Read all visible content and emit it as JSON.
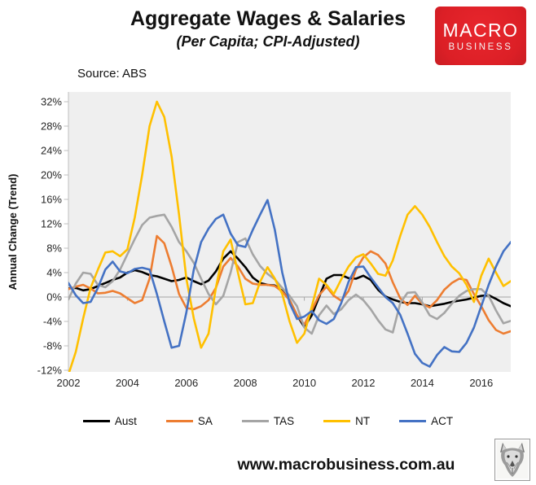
{
  "header": {
    "title": "Aggregate Wages & Salaries",
    "subtitle": "(Per Capita; CPI-Adjusted)",
    "source": "Source: ABS"
  },
  "logo": {
    "line1": "MACRO",
    "line2": "BUSINESS",
    "bg_color": "#DC1F26",
    "text_color": "#FFFFFF"
  },
  "footer": {
    "url": "www.macrobusiness.com.au",
    "emblem": "wolf-etching"
  },
  "chart_data": {
    "type": "line",
    "title": "Aggregate Wages & Salaries",
    "subtitle": "(Per Capita; CPI-Adjusted)",
    "source": "Source: ABS",
    "ylabel": "Annual Change (Trend)",
    "xlabel": "",
    "x_start": 2002.0,
    "x_step": 0.25,
    "xlim": [
      2002,
      2017
    ],
    "ylim": [
      -12.3,
      33.6
    ],
    "xticks": [
      2002,
      2004,
      2006,
      2008,
      2010,
      2012,
      2014,
      2016
    ],
    "ytick_values": [
      32,
      28,
      24,
      20,
      16,
      12,
      8,
      4,
      0,
      -4,
      -8,
      -12
    ],
    "ytick_labels": [
      "32%",
      "28%",
      "24%",
      "20%",
      "16%",
      "12%",
      "8%",
      "4%",
      "0%",
      "-4%",
      "-8%",
      "-12%"
    ],
    "grid": "zero-line-only",
    "legend_position": "bottom",
    "plot_bg": "#EFEFEF",
    "axis_color": "#BFBFBF",
    "zero_line_color": "#A6A6A6",
    "series": [
      {
        "name": "Aust",
        "color": "#000000",
        "values": [
          1.4,
          1.5,
          1.1,
          1.3,
          1.8,
          2.3,
          2.8,
          3.2,
          4.0,
          4.4,
          4.1,
          3.6,
          3.4,
          3.0,
          2.6,
          2.8,
          3.2,
          2.6,
          2.1,
          2.7,
          4.2,
          6.3,
          7.5,
          6.3,
          4.9,
          3.2,
          2.3,
          2.0,
          1.9,
          1.0,
          -0.5,
          -3.0,
          -4.9,
          -3.0,
          0.0,
          3.0,
          3.6,
          3.6,
          3.1,
          3.0,
          3.5,
          2.8,
          1.2,
          0.1,
          -0.4,
          -0.8,
          -1.0,
          -1.0,
          -1.2,
          -1.5,
          -1.3,
          -1.1,
          -0.8,
          -0.6,
          -0.4,
          -0.1,
          0.2,
          0.3,
          -0.3,
          -1.0,
          -1.5
        ]
      },
      {
        "name": "SA",
        "color": "#ED7D31",
        "values": [
          1.3,
          1.7,
          2.0,
          1.4,
          0.6,
          0.7,
          1.0,
          0.6,
          -0.2,
          -1.0,
          -0.5,
          3.0,
          10.0,
          8.8,
          5.0,
          0.5,
          -1.8,
          -2.0,
          -1.5,
          -0.5,
          1.5,
          5.0,
          6.4,
          5.0,
          3.0,
          2.2,
          2.0,
          2.0,
          1.8,
          0.9,
          -0.5,
          -3.0,
          -4.5,
          -2.2,
          0.3,
          1.7,
          0.2,
          -0.6,
          1.0,
          4.5,
          6.5,
          7.5,
          6.9,
          5.5,
          2.4,
          -0.2,
          -1.3,
          0.2,
          -1.1,
          -1.7,
          -0.5,
          1.2,
          2.3,
          3.0,
          2.8,
          0.5,
          -1.5,
          -3.8,
          -5.4,
          -6.0,
          -5.6
        ]
      },
      {
        "name": "TAS",
        "color": "#A5A5A5",
        "values": [
          -0.4,
          2.2,
          4.0,
          3.8,
          2.0,
          1.6,
          2.6,
          4.5,
          7.0,
          9.5,
          11.8,
          13.0,
          13.3,
          13.5,
          11.5,
          9.0,
          7.5,
          5.6,
          3.0,
          0.5,
          -1.2,
          0.2,
          4.0,
          9.0,
          9.6,
          7.0,
          5.1,
          3.8,
          2.9,
          1.5,
          0.2,
          -1.5,
          -5.0,
          -6.0,
          -3.0,
          -1.4,
          -2.8,
          -2.0,
          -0.5,
          0.4,
          -0.5,
          -2.0,
          -3.8,
          -5.3,
          -5.8,
          -1.0,
          0.7,
          0.8,
          -0.9,
          -3.0,
          -3.6,
          -2.6,
          -1.1,
          0.2,
          1.0,
          1.3,
          1.3,
          0.2,
          -2.2,
          -4.3,
          -3.9
        ]
      },
      {
        "name": "NT",
        "color": "#FFC000",
        "values": [
          -12.7,
          -9.0,
          -3.5,
          1.5,
          4.5,
          7.3,
          7.5,
          6.7,
          7.8,
          13.0,
          20.0,
          28.0,
          32.0,
          29.5,
          23.0,
          13.5,
          3.0,
          -3.5,
          -8.3,
          -6.0,
          1.5,
          7.5,
          9.4,
          4.0,
          -1.2,
          -1.0,
          2.5,
          4.9,
          3.0,
          0.5,
          -4.0,
          -7.5,
          -6.0,
          -1.6,
          3.0,
          2.0,
          0.5,
          2.9,
          5.0,
          6.5,
          7.0,
          5.5,
          3.8,
          3.5,
          6.0,
          10.0,
          13.5,
          14.9,
          13.5,
          11.5,
          9.0,
          6.7,
          5.0,
          3.9,
          2.0,
          -0.8,
          3.5,
          6.3,
          4.0,
          1.8,
          2.6
        ]
      },
      {
        "name": "ACT",
        "color": "#4472C4",
        "values": [
          2.3,
          0.3,
          -1.0,
          -0.8,
          1.5,
          4.5,
          5.8,
          4.2,
          3.9,
          4.6,
          4.8,
          4.5,
          0.5,
          -4.0,
          -8.3,
          -8.0,
          -2.5,
          4.5,
          9.0,
          11.2,
          12.8,
          13.5,
          10.4,
          8.5,
          8.2,
          11.0,
          13.5,
          15.9,
          11.0,
          4.0,
          -1.0,
          -3.6,
          -3.2,
          -2.3,
          -3.8,
          -4.4,
          -3.6,
          -1.0,
          2.5,
          4.9,
          5.0,
          3.2,
          1.6,
          0.0,
          -1.0,
          -2.9,
          -6.0,
          -9.3,
          -10.8,
          -11.4,
          -9.5,
          -8.2,
          -8.9,
          -9.0,
          -7.5,
          -5.0,
          -1.5,
          2.0,
          5.0,
          7.5,
          9.0
        ]
      }
    ]
  }
}
